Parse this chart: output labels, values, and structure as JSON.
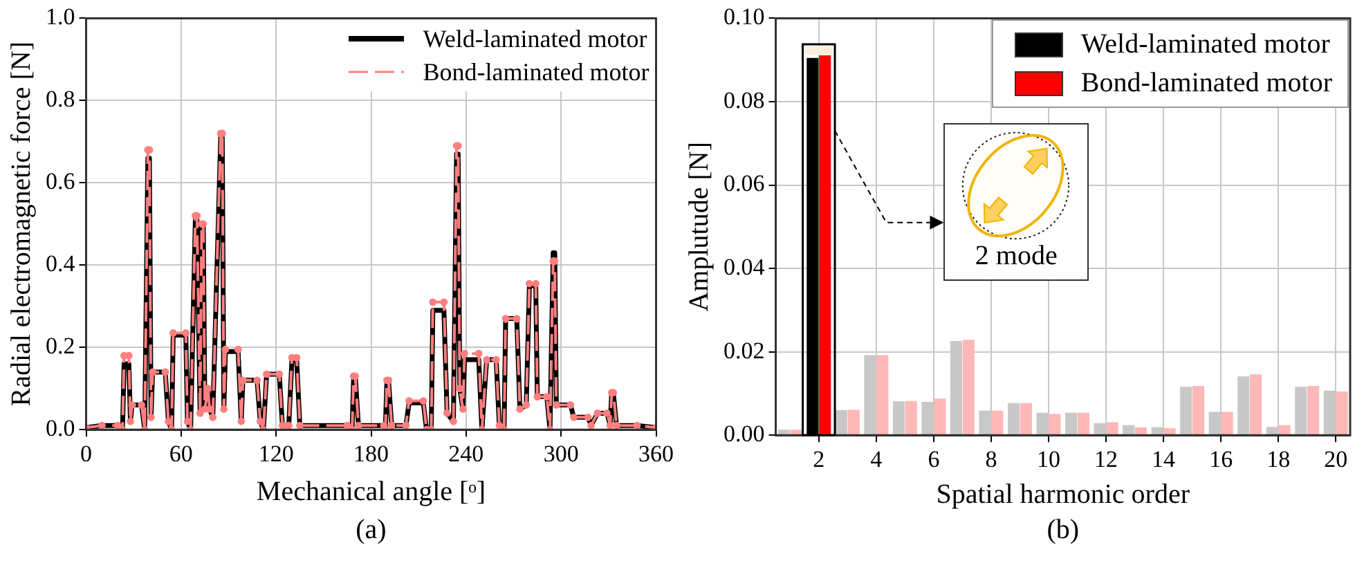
{
  "chart_data": [
    {
      "type": "line",
      "xlabel": "Mechanical angle [ᵒ]",
      "ylabel": "Radial electromagnetic force [N]",
      "xlim": [
        0,
        360
      ],
      "xticks": [
        0,
        60,
        120,
        180,
        240,
        300,
        360
      ],
      "ylim": [
        0,
        1.0
      ],
      "yticks": [
        {
          "value": 0,
          "label": "0.0"
        },
        {
          "value": 0.2,
          "label": "0.2"
        },
        {
          "value": 0.4,
          "label": "0.4"
        },
        {
          "value": 0.6,
          "label": "0.6"
        },
        {
          "value": 0.8,
          "label": "0.8"
        },
        {
          "value": 1.0,
          "label": "1.0"
        }
      ],
      "grid": true,
      "legend": "top right",
      "annotations": [
        "(a)"
      ],
      "x": [
        0,
        10,
        20,
        23,
        24,
        27,
        28,
        29,
        35,
        37,
        39,
        40,
        41,
        42,
        50,
        52,
        54,
        55,
        63,
        64,
        66,
        69,
        70,
        72,
        73,
        74,
        75,
        77,
        78,
        80,
        85,
        86,
        87,
        88,
        96,
        98,
        99,
        108,
        110,
        112,
        114,
        122,
        124,
        128,
        130,
        133,
        135,
        165,
        168,
        169,
        170,
        172,
        188,
        189,
        190,
        191,
        193,
        202,
        204,
        213,
        215,
        218,
        219,
        226,
        228,
        232,
        234,
        235,
        236,
        238,
        239,
        248,
        250,
        253,
        259,
        261,
        264,
        265,
        272,
        274,
        278,
        280,
        284,
        285,
        291,
        293,
        295,
        296,
        297,
        306,
        308,
        317,
        319,
        323,
        329,
        331,
        332,
        333,
        335,
        348,
        360
      ],
      "series": [
        {
          "name": "Weld-laminated motor",
          "color": "#000000",
          "line_style": "solid",
          "marker": "none",
          "values": [
            0.005,
            0.01,
            0.01,
            0,
            0.16,
            0.16,
            0.02,
            0.06,
            0.06,
            0,
            0.66,
            0.66,
            0.03,
            0.14,
            0.14,
            0.02,
            0,
            0.23,
            0.23,
            0.02,
            0,
            0.51,
            0.51,
            0.04,
            0.5,
            0.5,
            0.05,
            0.1,
            0.05,
            0.03,
            0.71,
            0.71,
            0.05,
            0.19,
            0.19,
            0.02,
            0.12,
            0.12,
            0.02,
            0,
            0.135,
            0.135,
            0.01,
            0.01,
            0.17,
            0.17,
            0.01,
            0.01,
            0,
            0.13,
            0.13,
            0.01,
            0.01,
            0,
            0.12,
            0.12,
            0.01,
            0.01,
            0.065,
            0.065,
            0,
            0,
            0.29,
            0.29,
            0.04,
            0.02,
            0.67,
            0.67,
            0.1,
            0.05,
            0.17,
            0.17,
            0,
            0.17,
            0.17,
            0.01,
            0,
            0.27,
            0.27,
            0.05,
            0.06,
            0.35,
            0.35,
            0.08,
            0.08,
            0,
            0.43,
            0.43,
            0.06,
            0.06,
            0.03,
            0.03,
            0.01,
            0.04,
            0.04,
            0.01,
            0.09,
            0.09,
            0.01,
            0.01,
            0.005
          ]
        },
        {
          "name": "Bond-laminated motor",
          "color": "#ff7f7f",
          "line_style": "dashed",
          "marker": "circle",
          "values": [
            0.005,
            0.01,
            0.01,
            0,
            0.18,
            0.18,
            0.02,
            0.06,
            0.06,
            0,
            0.68,
            0.68,
            0.03,
            0.14,
            0.14,
            0.02,
            0,
            0.235,
            0.235,
            0.02,
            0,
            0.52,
            0.52,
            0.04,
            0.5,
            0.5,
            0.05,
            0.1,
            0.05,
            0.03,
            0.72,
            0.72,
            0.05,
            0.195,
            0.195,
            0.02,
            0.12,
            0.12,
            0.02,
            0,
            0.135,
            0.135,
            0.01,
            0.01,
            0.175,
            0.175,
            0.01,
            0.01,
            0,
            0.13,
            0.13,
            0.01,
            0.01,
            0,
            0.12,
            0.12,
            0.01,
            0.01,
            0.07,
            0.07,
            0,
            0,
            0.31,
            0.31,
            0.04,
            0.02,
            0.69,
            0.69,
            0.1,
            0.05,
            0.185,
            0.185,
            0,
            0.17,
            0.17,
            0.01,
            0,
            0.27,
            0.27,
            0.05,
            0.06,
            0.355,
            0.355,
            0.08,
            0.08,
            0,
            0.41,
            0.41,
            0.06,
            0.06,
            0.03,
            0.03,
            0.01,
            0.04,
            0.04,
            0.01,
            0.09,
            0.09,
            0.01,
            0.01,
            0.005
          ]
        }
      ]
    },
    {
      "type": "bar",
      "xlabel": "Spatial harmonic order",
      "ylabel": "Amplutude [N]",
      "categories": [
        null,
        "2",
        null,
        "4",
        null,
        "6",
        null,
        "8",
        null,
        "10",
        null,
        "12",
        null,
        "14",
        null,
        "16",
        null,
        "18",
        null,
        "20"
      ],
      "ylim": [
        0,
        0.1
      ],
      "yticks": [
        {
          "value": 0,
          "label": "0.00"
        },
        {
          "value": 0.02,
          "label": "0.02"
        },
        {
          "value": 0.04,
          "label": "0.04"
        },
        {
          "value": 0.06,
          "label": "0.06"
        },
        {
          "value": 0.08,
          "label": "0.08"
        },
        {
          "value": 0.1,
          "label": "0.10"
        }
      ],
      "grid": true,
      "legend": "top right",
      "annotations": [
        "2 mode",
        "(b)"
      ],
      "series": [
        {
          "name": "Weld-laminated motor",
          "color": "#000000",
          "colors": [
            "#c8c8c8",
            "#000000",
            "#c8c8c8",
            "#c8c8c8",
            "#c8c8c8",
            "#c8c8c8",
            "#c8c8c8",
            "#c8c8c8",
            "#c8c8c8",
            "#c8c8c8",
            "#c8c8c8",
            "#c8c8c8",
            "#c8c8c8",
            "#c8c8c8",
            "#c8c8c8",
            "#c8c8c8",
            "#c8c8c8",
            "#c8c8c8",
            "#c8c8c8",
            "#c8c8c8"
          ],
          "values": [
            0.0013,
            0.0905,
            0.006,
            0.0192,
            0.0081,
            0.008,
            0.0226,
            0.0059,
            0.0077,
            0.0054,
            0.0054,
            0.0029,
            0.0024,
            0.0019,
            0.0116,
            0.0056,
            0.0141,
            0.002,
            0.0116,
            0.0107
          ]
        },
        {
          "name": "Bond-laminated motor",
          "color": "#ff0000",
          "colors": [
            "#ffb8b8",
            "#ff0000",
            "#ffb8b8",
            "#ffb8b8",
            "#ffb8b8",
            "#ffb8b8",
            "#ffb8b8",
            "#ffb8b8",
            "#ffb8b8",
            "#ffb8b8",
            "#ffb8b8",
            "#ffb8b8",
            "#ffb8b8",
            "#ffb8b8",
            "#ffb8b8",
            "#ffb8b8",
            "#ffb8b8",
            "#ffb8b8",
            "#ffb8b8",
            "#ffb8b8"
          ],
          "values": [
            0.0013,
            0.0911,
            0.0061,
            0.0192,
            0.0082,
            0.0088,
            0.0229,
            0.0059,
            0.0077,
            0.0051,
            0.0054,
            0.0031,
            0.0019,
            0.0017,
            0.0118,
            0.0056,
            0.0146,
            0.0024,
            0.0118,
            0.0105
          ]
        }
      ]
    }
  ]
}
